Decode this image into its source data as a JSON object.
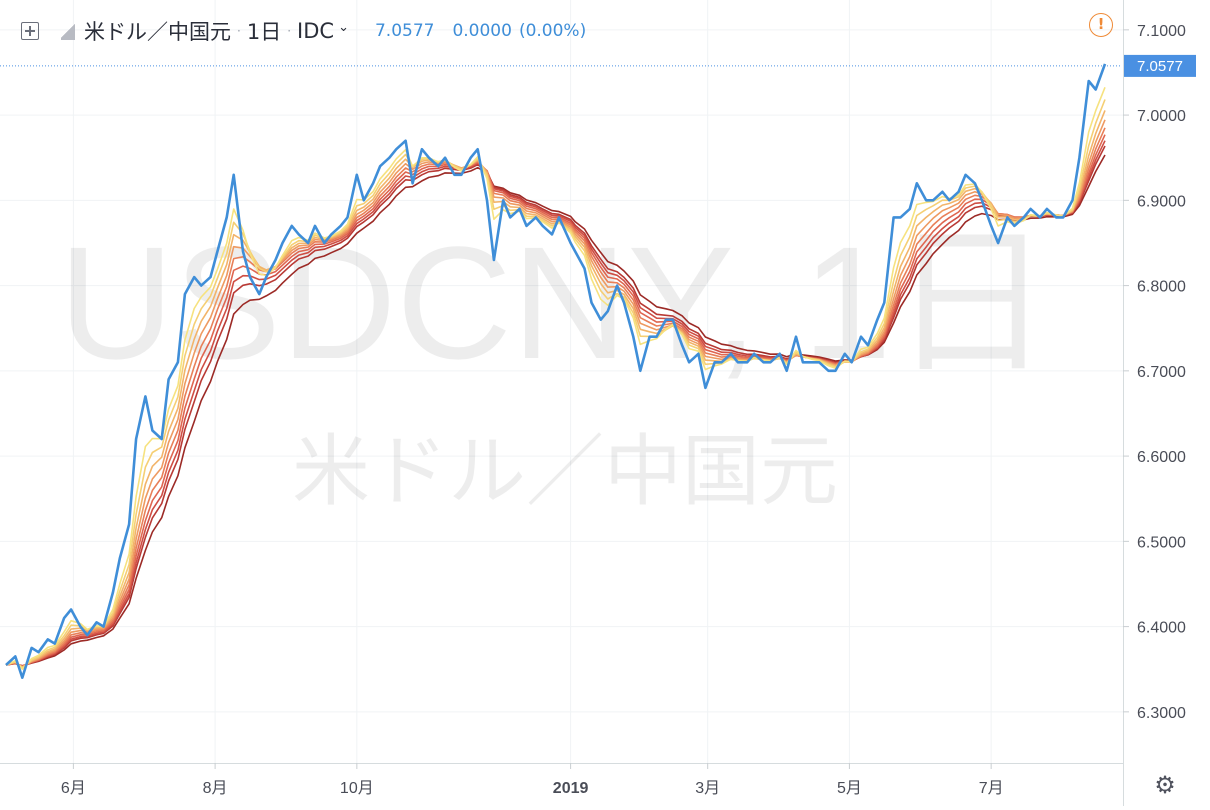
{
  "header": {
    "symbol_name": "米ドル／中国元",
    "dot": "·",
    "interval": "1日",
    "source": "IDC",
    "last_price": "7.0577",
    "change": "0.0000",
    "change_pct": "(0.00%)"
  },
  "watermark": {
    "ticker": "USDCNY, 1日",
    "name": "米ドル／中国元"
  },
  "icons": {
    "expand": "plus-square-icon",
    "flag": "flag-icon",
    "source_menu": "chevron-down-icon",
    "warning": "warning-icon",
    "settings": "gear-icon"
  },
  "warning_glyph": "!",
  "settings_glyph": "⚙",
  "colors": {
    "price_line": "#3f8ed8",
    "price_tag_bg": "#4a90e2",
    "warning": "#ef8a36",
    "ribbon": [
      "#f6e27f",
      "#f5cf74",
      "#f2b46a",
      "#ee9a61",
      "#e87f58",
      "#df6650",
      "#cf4e44",
      "#b93a35",
      "#9c2a26"
    ]
  },
  "chart_data": {
    "type": "line",
    "title": "米ドル／中国元",
    "ylim": [
      6.24,
      7.135
    ],
    "y_ticks": [
      "7.1000",
      "7.0000",
      "6.9000",
      "6.8000",
      "6.7000",
      "6.6000",
      "6.5000",
      "6.4000",
      "6.3000"
    ],
    "x_ticks": [
      "6月",
      "8月",
      "10月",
      "2019",
      "3月",
      "5月",
      "7月"
    ],
    "x_tick_dates": [
      "2018-06-01",
      "2018-08-01",
      "2018-10-01",
      "2019-01-01",
      "2019-03-01",
      "2019-05-01",
      "2019-07-01"
    ],
    "x_range": [
      "2018-05-03",
      "2019-08-19"
    ],
    "last_price_marker": {
      "value": 7.0577,
      "label": "7.0577"
    },
    "series": [
      {
        "name": "USDCNY",
        "x": [
          "2018-05-03",
          "2018-05-07",
          "2018-05-10",
          "2018-05-14",
          "2018-05-17",
          "2018-05-21",
          "2018-05-24",
          "2018-05-28",
          "2018-05-31",
          "2018-06-04",
          "2018-06-07",
          "2018-06-11",
          "2018-06-14",
          "2018-06-18",
          "2018-06-21",
          "2018-06-25",
          "2018-06-28",
          "2018-07-02",
          "2018-07-05",
          "2018-07-09",
          "2018-07-12",
          "2018-07-16",
          "2018-07-19",
          "2018-07-23",
          "2018-07-26",
          "2018-07-30",
          "2018-08-02",
          "2018-08-06",
          "2018-08-09",
          "2018-08-13",
          "2018-08-16",
          "2018-08-20",
          "2018-08-23",
          "2018-08-27",
          "2018-08-30",
          "2018-09-03",
          "2018-09-06",
          "2018-09-10",
          "2018-09-13",
          "2018-09-17",
          "2018-09-20",
          "2018-09-24",
          "2018-09-27",
          "2018-10-01",
          "2018-10-04",
          "2018-10-08",
          "2018-10-11",
          "2018-10-15",
          "2018-10-18",
          "2018-10-22",
          "2018-10-25",
          "2018-10-29",
          "2018-11-01",
          "2018-11-05",
          "2018-11-08",
          "2018-11-12",
          "2018-11-15",
          "2018-11-19",
          "2018-11-22",
          "2018-11-26",
          "2018-11-29",
          "2018-12-03",
          "2018-12-06",
          "2018-12-10",
          "2018-12-13",
          "2018-12-17",
          "2018-12-20",
          "2018-12-24",
          "2018-12-27",
          "2019-01-01",
          "2019-01-03",
          "2019-01-07",
          "2019-01-10",
          "2019-01-14",
          "2019-01-17",
          "2019-01-21",
          "2019-01-24",
          "2019-01-28",
          "2019-01-31",
          "2019-02-04",
          "2019-02-07",
          "2019-02-11",
          "2019-02-14",
          "2019-02-18",
          "2019-02-21",
          "2019-02-25",
          "2019-02-28",
          "2019-03-04",
          "2019-03-07",
          "2019-03-11",
          "2019-03-14",
          "2019-03-18",
          "2019-03-21",
          "2019-03-25",
          "2019-03-28",
          "2019-04-01",
          "2019-04-04",
          "2019-04-08",
          "2019-04-11",
          "2019-04-15",
          "2019-04-18",
          "2019-04-22",
          "2019-04-25",
          "2019-04-29",
          "2019-05-02",
          "2019-05-06",
          "2019-05-09",
          "2019-05-13",
          "2019-05-16",
          "2019-05-20",
          "2019-05-23",
          "2019-05-27",
          "2019-05-30",
          "2019-06-03",
          "2019-06-06",
          "2019-06-10",
          "2019-06-13",
          "2019-06-17",
          "2019-06-20",
          "2019-06-24",
          "2019-06-27",
          "2019-07-01",
          "2019-07-04",
          "2019-07-08",
          "2019-07-11",
          "2019-07-15",
          "2019-07-18",
          "2019-07-22",
          "2019-07-25",
          "2019-07-29",
          "2019-08-01",
          "2019-08-05",
          "2019-08-08",
          "2019-08-12",
          "2019-08-15",
          "2019-08-19"
        ],
        "values": [
          6.355,
          6.365,
          6.34,
          6.375,
          6.37,
          6.385,
          6.38,
          6.41,
          6.42,
          6.4,
          6.39,
          6.405,
          6.4,
          6.44,
          6.48,
          6.52,
          6.62,
          6.67,
          6.63,
          6.62,
          6.69,
          6.71,
          6.79,
          6.81,
          6.8,
          6.81,
          6.84,
          6.88,
          6.93,
          6.84,
          6.81,
          6.79,
          6.81,
          6.83,
          6.85,
          6.87,
          6.86,
          6.85,
          6.87,
          6.85,
          6.86,
          6.87,
          6.88,
          6.93,
          6.9,
          6.92,
          6.94,
          6.95,
          6.96,
          6.97,
          6.92,
          6.96,
          6.95,
          6.94,
          6.95,
          6.93,
          6.93,
          6.95,
          6.96,
          6.9,
          6.83,
          6.9,
          6.88,
          6.89,
          6.87,
          6.88,
          6.87,
          6.86,
          6.88,
          6.85,
          6.84,
          6.82,
          6.78,
          6.76,
          6.77,
          6.8,
          6.78,
          6.74,
          6.7,
          6.74,
          6.74,
          6.76,
          6.76,
          6.73,
          6.71,
          6.72,
          6.68,
          6.71,
          6.71,
          6.72,
          6.71,
          6.71,
          6.72,
          6.71,
          6.71,
          6.72,
          6.7,
          6.74,
          6.71,
          6.71,
          6.71,
          6.7,
          6.7,
          6.72,
          6.71,
          6.74,
          6.73,
          6.76,
          6.78,
          6.88,
          6.88,
          6.89,
          6.92,
          6.9,
          6.9,
          6.91,
          6.9,
          6.91,
          6.93,
          6.92,
          6.9,
          6.87,
          6.85,
          6.88,
          6.87,
          6.88,
          6.89,
          6.88,
          6.89,
          6.88,
          6.88,
          6.9,
          6.95,
          7.04,
          7.03,
          7.06
        ]
      }
    ]
  }
}
